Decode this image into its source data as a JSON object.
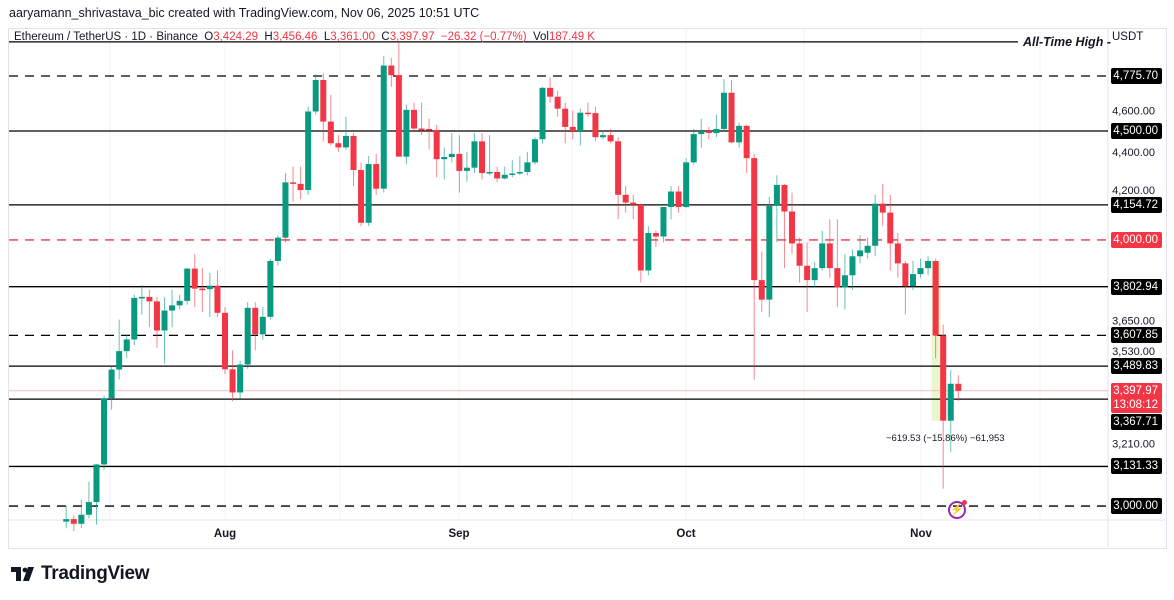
{
  "credit": "aaryamann_shrivastava_bic created with TradingView.com, Nov 06, 2025 10:51 UTC",
  "legend": {
    "symbol": "Ethereum / TetherUS · 1D · Binance",
    "o_label": "O",
    "o": "3,424.29",
    "h_label": "H",
    "h": "3,456.46",
    "l_label": "L",
    "l": "3,361.00",
    "c_label": "C",
    "c": "3,397.97",
    "change": "−26.32 (−0.77%)",
    "vol_label": "Vol",
    "vol": "187.49 K"
  },
  "currency": "USDT",
  "ath_label": "All-Time High -",
  "colors": {
    "up": "#089981",
    "down": "#f23645",
    "level": "#000000",
    "key_level": "#f23645"
  },
  "price_ticks": [
    "4,600.00",
    "4,400.00",
    "4,200.00",
    "3,650.00",
    "3,530.00",
    "3,210.00"
  ],
  "levels": [
    {
      "price": 4955,
      "style": "solid",
      "label": ""
    },
    {
      "price": 4775.7,
      "style": "dashed",
      "label": "4,775.70"
    },
    {
      "price": 4500.0,
      "style": "solid",
      "label": "4,500.00"
    },
    {
      "price": 4154.72,
      "style": "solid",
      "label": "4,154.72"
    },
    {
      "price": 4000.0,
      "style": "dashed-red",
      "label": "4,000.00"
    },
    {
      "price": 3802.94,
      "style": "solid",
      "label": "3,802.94"
    },
    {
      "price": 3607.85,
      "style": "dashed",
      "label": "3,607.85"
    },
    {
      "price": 3489.83,
      "style": "solid",
      "label": "3,489.83"
    },
    {
      "price": 3367.71,
      "style": "solid",
      "label": "3,367.71"
    },
    {
      "price": 3131.33,
      "style": "solid",
      "label": "3,131.33"
    },
    {
      "price": 3000.0,
      "style": "dashed",
      "label": "3,000.00"
    }
  ],
  "current": {
    "price": "3,397.97",
    "countdown": "13:08:12"
  },
  "months": [
    "Aug",
    "Sep",
    "Oct",
    "Nov"
  ],
  "measure": "−619.53 (−15.86%) −61,953",
  "brand": "TradingView",
  "chart_data": {
    "type": "candlestick",
    "scale": "log",
    "start_date": "2025-07-11",
    "ohlc": [
      [
        2950,
        3000,
        2930,
        2958
      ],
      [
        2958,
        2970,
        2920,
        2943
      ],
      [
        2943,
        3020,
        2930,
        2972
      ],
      [
        2972,
        3080,
        2960,
        3013
      ],
      [
        3013,
        3140,
        2940,
        3138
      ],
      [
        3138,
        3380,
        3120,
        3371
      ],
      [
        3371,
        3490,
        3330,
        3477
      ],
      [
        3477,
        3670,
        3440,
        3547
      ],
      [
        3547,
        3610,
        3520,
        3592
      ],
      [
        3592,
        3770,
        3570,
        3757
      ],
      [
        3757,
        3810,
        3690,
        3761
      ],
      [
        3761,
        3790,
        3640,
        3743
      ],
      [
        3743,
        3760,
        3560,
        3627
      ],
      [
        3627,
        3760,
        3500,
        3706
      ],
      [
        3706,
        3790,
        3640,
        3727
      ],
      [
        3727,
        3770,
        3710,
        3745
      ],
      [
        3745,
        3880,
        3730,
        3878
      ],
      [
        3878,
        3940,
        3720,
        3795
      ],
      [
        3795,
        3880,
        3700,
        3793
      ],
      [
        3793,
        3860,
        3680,
        3807
      ],
      [
        3807,
        3870,
        3680,
        3697
      ],
      [
        3697,
        3720,
        3460,
        3478
      ],
      [
        3478,
        3550,
        3360,
        3392
      ],
      [
        3392,
        3510,
        3370,
        3496
      ],
      [
        3496,
        3740,
        3480,
        3717
      ],
      [
        3717,
        3740,
        3550,
        3612
      ],
      [
        3612,
        3720,
        3590,
        3681
      ],
      [
        3681,
        3920,
        3670,
        3910
      ],
      [
        3910,
        4020,
        3890,
        4010
      ],
      [
        4010,
        4300,
        3990,
        4257
      ],
      [
        4257,
        4330,
        4170,
        4250
      ],
      [
        4250,
        4330,
        4180,
        4222
      ],
      [
        4222,
        4620,
        4200,
        4596
      ],
      [
        4596,
        4785,
        4580,
        4755
      ],
      [
        4755,
        4790,
        4450,
        4546
      ],
      [
        4546,
        4680,
        4430,
        4441
      ],
      [
        4441,
        4480,
        4400,
        4421
      ],
      [
        4421,
        4570,
        4410,
        4476
      ],
      [
        4476,
        4490,
        4240,
        4314
      ],
      [
        4314,
        4350,
        4060,
        4075
      ],
      [
        4075,
        4380,
        4060,
        4342
      ],
      [
        4342,
        4390,
        4200,
        4228
      ],
      [
        4228,
        4880,
        4210,
        4830
      ],
      [
        4830,
        4870,
        4720,
        4780
      ],
      [
        4780,
        4955,
        4380,
        4377
      ],
      [
        4377,
        4630,
        4340,
        4604
      ],
      [
        4604,
        4640,
        4500,
        4512
      ],
      [
        4512,
        4640,
        4480,
        4502
      ],
      [
        4510,
        4560,
        4410,
        4505
      ],
      [
        4505,
        4530,
        4280,
        4365
      ],
      [
        4365,
        4420,
        4270,
        4375
      ],
      [
        4375,
        4490,
        4350,
        4390
      ],
      [
        4390,
        4480,
        4210,
        4310
      ],
      [
        4310,
        4400,
        4260,
        4325
      ],
      [
        4325,
        4490,
        4300,
        4450
      ],
      [
        4450,
        4490,
        4270,
        4300
      ],
      [
        4300,
        4480,
        4290,
        4305
      ],
      [
        4305,
        4330,
        4260,
        4275
      ],
      [
        4275,
        4330,
        4270,
        4292
      ],
      [
        4292,
        4360,
        4280,
        4298
      ],
      [
        4298,
        4380,
        4290,
        4305
      ],
      [
        4305,
        4400,
        4290,
        4350
      ],
      [
        4350,
        4470,
        4340,
        4460
      ],
      [
        4460,
        4720,
        4440,
        4715
      ],
      [
        4715,
        4770,
        4640,
        4670
      ],
      [
        4670,
        4700,
        4570,
        4610
      ],
      [
        4610,
        4640,
        4440,
        4520
      ],
      [
        4520,
        4600,
        4460,
        4500
      ],
      [
        4500,
        4610,
        4430,
        4590
      ],
      [
        4590,
        4640,
        4570,
        4588
      ],
      [
        4588,
        4620,
        4450,
        4470
      ],
      [
        4470,
        4500,
        4460,
        4480
      ],
      [
        4480,
        4510,
        4440,
        4450
      ],
      [
        4450,
        4470,
        4090,
        4200
      ],
      [
        4200,
        4240,
        4120,
        4165
      ],
      [
        4165,
        4200,
        4090,
        4155
      ],
      [
        4155,
        4160,
        3820,
        3870
      ],
      [
        3870,
        4060,
        3850,
        4030
      ],
      [
        4030,
        4040,
        3970,
        4015
      ],
      [
        4015,
        4140,
        3990,
        4145
      ],
      [
        4145,
        4240,
        4090,
        4215
      ],
      [
        4215,
        4240,
        4120,
        4145
      ],
      [
        4145,
        4370,
        4140,
        4350
      ],
      [
        4350,
        4510,
        4340,
        4485
      ],
      [
        4485,
        4560,
        4420,
        4500
      ],
      [
        4500,
        4520,
        4460,
        4490
      ],
      [
        4490,
        4580,
        4470,
        4510
      ],
      [
        4510,
        4760,
        4500,
        4690
      ],
      [
        4690,
        4755,
        4440,
        4445
      ],
      [
        4445,
        4540,
        4420,
        4525
      ],
      [
        4525,
        4530,
        4300,
        4370
      ],
      [
        4370,
        4390,
        3440,
        3830
      ],
      [
        3830,
        3950,
        3700,
        3750
      ],
      [
        3750,
        4190,
        3680,
        4150
      ],
      [
        4150,
        4290,
        3990,
        4245
      ],
      [
        4245,
        4250,
        3880,
        4125
      ],
      [
        4125,
        4210,
        3940,
        3985
      ],
      [
        3985,
        4010,
        3820,
        3890
      ],
      [
        3890,
        3990,
        3700,
        3830
      ],
      [
        3830,
        3905,
        3800,
        3880
      ],
      [
        3880,
        4040,
        3870,
        3985
      ],
      [
        3985,
        4090,
        3840,
        3880
      ],
      [
        3880,
        4090,
        3720,
        3800
      ],
      [
        3800,
        3940,
        3710,
        3850
      ],
      [
        3850,
        3960,
        3790,
        3930
      ],
      [
        3930,
        4020,
        3900,
        3955
      ],
      [
        3945,
        4010,
        3920,
        3975
      ],
      [
        3975,
        4200,
        3930,
        4160
      ],
      [
        4160,
        4250,
        4060,
        4120
      ],
      [
        4120,
        4200,
        3870,
        3985
      ],
      [
        3985,
        4030,
        3840,
        3900
      ],
      [
        3900,
        3910,
        3690,
        3805
      ],
      [
        3805,
        3910,
        3790,
        3855
      ],
      [
        3855,
        3920,
        3840,
        3880
      ],
      [
        3880,
        3930,
        3850,
        3910
      ],
      [
        3910,
        3920,
        3520,
        3607
      ],
      [
        3607,
        3650,
        3057,
        3290
      ],
      [
        3290,
        3475,
        3180,
        3424
      ],
      [
        3424,
        3456,
        3361,
        3398
      ]
    ]
  }
}
